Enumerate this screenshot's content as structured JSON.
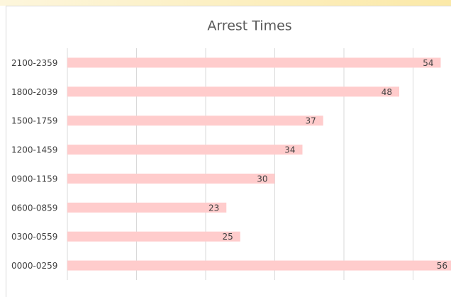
{
  "chart_data": {
    "type": "bar",
    "orientation": "horizontal",
    "title": "Arrest Times",
    "categories": [
      "2100-2359",
      "1800-2039",
      "1500-1759",
      "1200-1459",
      "0900-1159",
      "0600-0859",
      "0300-0559",
      "0000-0259"
    ],
    "values": [
      54,
      48,
      37,
      34,
      30,
      23,
      25,
      56
    ],
    "color": "#ffcccc",
    "xlim": [
      0,
      56
    ],
    "xticks": [
      0,
      10,
      20,
      30,
      40,
      50
    ],
    "grid": true
  }
}
